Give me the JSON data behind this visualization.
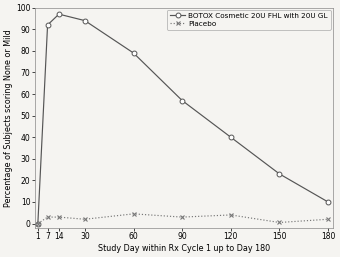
{
  "botox_x": [
    1,
    7,
    14,
    30,
    60,
    90,
    120,
    150,
    180
  ],
  "botox_y": [
    0,
    92,
    97,
    94,
    79,
    57,
    40,
    23,
    10
  ],
  "placebo_x": [
    1,
    7,
    14,
    30,
    60,
    90,
    120,
    150,
    180
  ],
  "placebo_y": [
    0,
    3,
    3,
    2,
    4.5,
    3,
    4,
    0.5,
    2
  ],
  "botox_label": "BOTOX Cosmetic 20U FHL with 20U GL",
  "placebo_label": "Placebo",
  "xlabel": "Study Day within Rx Cycle 1 up to Day 180",
  "ylabel": "Percentage of Subjects scoring None or Mild",
  "ylim": [
    -2,
    100
  ],
  "yticks": [
    0,
    10,
    20,
    30,
    40,
    50,
    60,
    70,
    80,
    90,
    100
  ],
  "xticks": [
    1,
    7,
    14,
    30,
    60,
    90,
    120,
    150,
    180
  ],
  "background_color": "#f5f4f1",
  "plot_bg_color": "#f5f4f1",
  "line_color_botox": "#555555",
  "line_color_placebo": "#777777",
  "label_fontsize": 5.8,
  "tick_fontsize": 5.5,
  "legend_fontsize": 5.2
}
